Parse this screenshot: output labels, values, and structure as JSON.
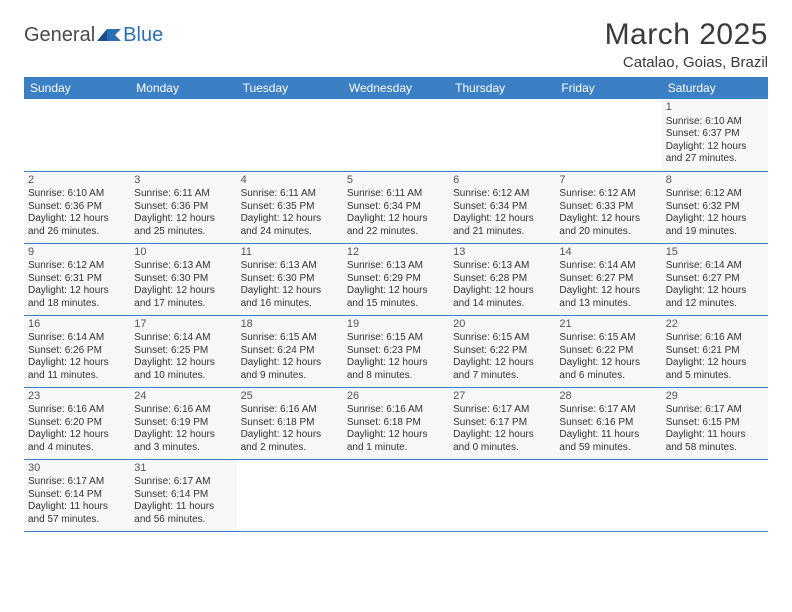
{
  "logo": {
    "text1": "General",
    "text2": "Blue"
  },
  "title": "March 2025",
  "location": "Catalao, Goias, Brazil",
  "weekdays": [
    "Sunday",
    "Monday",
    "Tuesday",
    "Wednesday",
    "Thursday",
    "Friday",
    "Saturday"
  ],
  "colors": {
    "header_bg": "#3b7fc4",
    "header_text": "#ffffff",
    "cell_bg": "#f7f7f7",
    "border": "#3b7fc4",
    "title_text": "#3a3a3a",
    "body_text": "#333333",
    "logo_gray": "#4a4a4a",
    "logo_blue": "#2b6fb5"
  },
  "layout": {
    "cols": 7,
    "rows": 6,
    "first_weekday_index": 6,
    "days_in_month": 31
  },
  "days": [
    {
      "n": 1,
      "sunrise": "6:10 AM",
      "sunset": "6:37 PM",
      "daylight": "12 hours and 27 minutes."
    },
    {
      "n": 2,
      "sunrise": "6:10 AM",
      "sunset": "6:36 PM",
      "daylight": "12 hours and 26 minutes."
    },
    {
      "n": 3,
      "sunrise": "6:11 AM",
      "sunset": "6:36 PM",
      "daylight": "12 hours and 25 minutes."
    },
    {
      "n": 4,
      "sunrise": "6:11 AM",
      "sunset": "6:35 PM",
      "daylight": "12 hours and 24 minutes."
    },
    {
      "n": 5,
      "sunrise": "6:11 AM",
      "sunset": "6:34 PM",
      "daylight": "12 hours and 22 minutes."
    },
    {
      "n": 6,
      "sunrise": "6:12 AM",
      "sunset": "6:34 PM",
      "daylight": "12 hours and 21 minutes."
    },
    {
      "n": 7,
      "sunrise": "6:12 AM",
      "sunset": "6:33 PM",
      "daylight": "12 hours and 20 minutes."
    },
    {
      "n": 8,
      "sunrise": "6:12 AM",
      "sunset": "6:32 PM",
      "daylight": "12 hours and 19 minutes."
    },
    {
      "n": 9,
      "sunrise": "6:12 AM",
      "sunset": "6:31 PM",
      "daylight": "12 hours and 18 minutes."
    },
    {
      "n": 10,
      "sunrise": "6:13 AM",
      "sunset": "6:30 PM",
      "daylight": "12 hours and 17 minutes."
    },
    {
      "n": 11,
      "sunrise": "6:13 AM",
      "sunset": "6:30 PM",
      "daylight": "12 hours and 16 minutes."
    },
    {
      "n": 12,
      "sunrise": "6:13 AM",
      "sunset": "6:29 PM",
      "daylight": "12 hours and 15 minutes."
    },
    {
      "n": 13,
      "sunrise": "6:13 AM",
      "sunset": "6:28 PM",
      "daylight": "12 hours and 14 minutes."
    },
    {
      "n": 14,
      "sunrise": "6:14 AM",
      "sunset": "6:27 PM",
      "daylight": "12 hours and 13 minutes."
    },
    {
      "n": 15,
      "sunrise": "6:14 AM",
      "sunset": "6:27 PM",
      "daylight": "12 hours and 12 minutes."
    },
    {
      "n": 16,
      "sunrise": "6:14 AM",
      "sunset": "6:26 PM",
      "daylight": "12 hours and 11 minutes."
    },
    {
      "n": 17,
      "sunrise": "6:14 AM",
      "sunset": "6:25 PM",
      "daylight": "12 hours and 10 minutes."
    },
    {
      "n": 18,
      "sunrise": "6:15 AM",
      "sunset": "6:24 PM",
      "daylight": "12 hours and 9 minutes."
    },
    {
      "n": 19,
      "sunrise": "6:15 AM",
      "sunset": "6:23 PM",
      "daylight": "12 hours and 8 minutes."
    },
    {
      "n": 20,
      "sunrise": "6:15 AM",
      "sunset": "6:22 PM",
      "daylight": "12 hours and 7 minutes."
    },
    {
      "n": 21,
      "sunrise": "6:15 AM",
      "sunset": "6:22 PM",
      "daylight": "12 hours and 6 minutes."
    },
    {
      "n": 22,
      "sunrise": "6:16 AM",
      "sunset": "6:21 PM",
      "daylight": "12 hours and 5 minutes."
    },
    {
      "n": 23,
      "sunrise": "6:16 AM",
      "sunset": "6:20 PM",
      "daylight": "12 hours and 4 minutes."
    },
    {
      "n": 24,
      "sunrise": "6:16 AM",
      "sunset": "6:19 PM",
      "daylight": "12 hours and 3 minutes."
    },
    {
      "n": 25,
      "sunrise": "6:16 AM",
      "sunset": "6:18 PM",
      "daylight": "12 hours and 2 minutes."
    },
    {
      "n": 26,
      "sunrise": "6:16 AM",
      "sunset": "6:18 PM",
      "daylight": "12 hours and 1 minute."
    },
    {
      "n": 27,
      "sunrise": "6:17 AM",
      "sunset": "6:17 PM",
      "daylight": "12 hours and 0 minutes."
    },
    {
      "n": 28,
      "sunrise": "6:17 AM",
      "sunset": "6:16 PM",
      "daylight": "11 hours and 59 minutes."
    },
    {
      "n": 29,
      "sunrise": "6:17 AM",
      "sunset": "6:15 PM",
      "daylight": "11 hours and 58 minutes."
    },
    {
      "n": 30,
      "sunrise": "6:17 AM",
      "sunset": "6:14 PM",
      "daylight": "11 hours and 57 minutes."
    },
    {
      "n": 31,
      "sunrise": "6:17 AM",
      "sunset": "6:14 PM",
      "daylight": "11 hours and 56 minutes."
    }
  ],
  "labels": {
    "sunrise": "Sunrise:",
    "sunset": "Sunset:",
    "daylight": "Daylight:"
  }
}
